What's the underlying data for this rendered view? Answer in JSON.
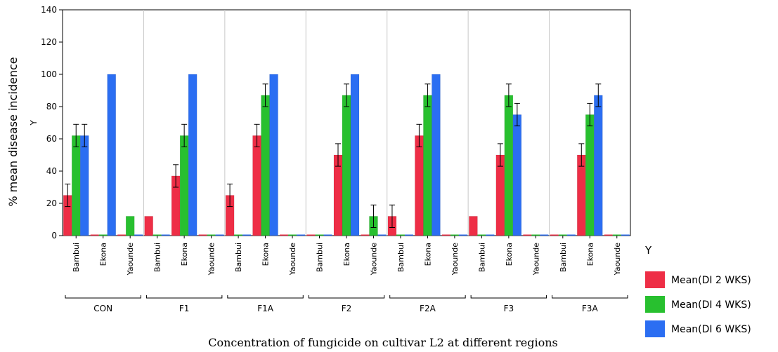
{
  "chart_data": {
    "type": "bar",
    "xlabel": "Concentration of fungicide on cultivar L2 at different regions",
    "ylabel": "% mean disease incidence",
    "ylabel_sub": "Y",
    "ylim": [
      0,
      140
    ],
    "yticks": [
      0,
      20,
      40,
      60,
      80,
      100,
      120,
      140
    ],
    "grid": "vertical separators between groups",
    "groups": [
      "CON",
      "F1",
      "F1A",
      "F2",
      "F2A",
      "F3",
      "F3A"
    ],
    "regions": [
      "Bambui",
      "Ekona",
      "Yaounde"
    ],
    "legend": {
      "title": "Y",
      "placement": "right",
      "entries": [
        "Mean(DI 2 WKS)",
        "Mean(DI 4 WKS)",
        "Mean(DI 6 WKS)"
      ]
    },
    "colors": [
      "#ee2e46",
      "#28c02f",
      "#2b6ef2"
    ],
    "series": [
      {
        "name": "Mean(DI 2 WKS)",
        "values": [
          25,
          0,
          0,
          12,
          37,
          0,
          25,
          62,
          0,
          0,
          50,
          0,
          12,
          62,
          0,
          12,
          50,
          0,
          0,
          50,
          0
        ],
        "errors": [
          7,
          0,
          0,
          0,
          7,
          0,
          7,
          7,
          0,
          0,
          7,
          0,
          7,
          7,
          0,
          0,
          7,
          0,
          0,
          7,
          0
        ]
      },
      {
        "name": "Mean(DI 4 WKS)",
        "values": [
          62,
          0,
          12,
          0,
          62,
          0,
          0,
          87,
          0,
          0,
          87,
          12,
          0,
          87,
          0,
          0,
          87,
          0,
          0,
          75,
          0
        ],
        "errors": [
          7,
          0,
          0,
          0,
          7,
          0,
          0,
          7,
          0,
          0,
          7,
          7,
          0,
          7,
          0,
          0,
          7,
          0,
          0,
          7,
          0
        ]
      },
      {
        "name": "Mean(DI 6 WKS)",
        "values": [
          62,
          100,
          0,
          0,
          100,
          0,
          0,
          100,
          0,
          0,
          100,
          0,
          0,
          100,
          0,
          0,
          75,
          0,
          0,
          87,
          0
        ],
        "errors": [
          7,
          0,
          0,
          0,
          0,
          0,
          0,
          0,
          0,
          0,
          0,
          0,
          0,
          0,
          0,
          0,
          7,
          0,
          0,
          7,
          0
        ]
      }
    ]
  }
}
